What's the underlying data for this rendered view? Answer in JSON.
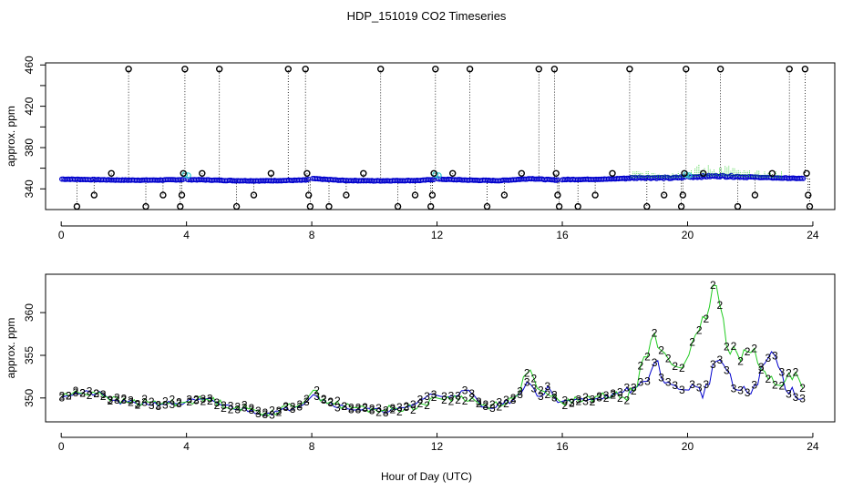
{
  "figure": {
    "title": "HDP_151019  CO2 Timeseries",
    "xlabel": "Hour of Day (UTC)"
  },
  "colors": {
    "black_marker": "#000000",
    "blue_series": "#0000cc",
    "green_series": "#22cc22",
    "cyan_marker": "#33cccc",
    "frame": "#000000"
  },
  "chart_data": [
    {
      "type": "scatter",
      "panel": "top",
      "ylabel": "approx. ppm",
      "xlim": [
        -0.5,
        24.7
      ],
      "ylim": [
        320,
        462
      ],
      "xticks": [
        0,
        4,
        8,
        12,
        16,
        20,
        24
      ],
      "xtick_labels": [
        "0",
        "4",
        "8",
        "12",
        "16",
        "20",
        "24"
      ],
      "yticks": [
        340,
        380,
        420,
        460
      ],
      "ytick_labels": [
        "340",
        "380",
        "420",
        "460"
      ],
      "baseline": [
        {
          "x": 0.0,
          "y": 349.5
        },
        {
          "x": 1.0,
          "y": 349.0
        },
        {
          "x": 2.0,
          "y": 348.5
        },
        {
          "x": 3.0,
          "y": 348.5
        },
        {
          "x": 3.9,
          "y": 349.0
        },
        {
          "x": 4.5,
          "y": 348.8
        },
        {
          "x": 5.5,
          "y": 348.0
        },
        {
          "x": 6.5,
          "y": 347.8
        },
        {
          "x": 7.8,
          "y": 348.5
        },
        {
          "x": 8.0,
          "y": 350.0
        },
        {
          "x": 9.0,
          "y": 348.2
        },
        {
          "x": 10.0,
          "y": 347.8
        },
        {
          "x": 11.5,
          "y": 348.2
        },
        {
          "x": 12.0,
          "y": 349.5
        },
        {
          "x": 13.0,
          "y": 348.5
        },
        {
          "x": 14.0,
          "y": 348.0
        },
        {
          "x": 15.0,
          "y": 350.0
        },
        {
          "x": 15.8,
          "y": 348.5
        },
        {
          "x": 16.0,
          "y": 349.0
        },
        {
          "x": 17.5,
          "y": 349.5
        },
        {
          "x": 18.5,
          "y": 351.0
        },
        {
          "x": 19.5,
          "y": 350.5
        },
        {
          "x": 20.0,
          "y": 351.5
        },
        {
          "x": 21.0,
          "y": 352.5
        },
        {
          "x": 22.0,
          "y": 351.5
        },
        {
          "x": 23.0,
          "y": 350.5
        },
        {
          "x": 23.7,
          "y": 350.0
        }
      ],
      "black_outliers": [
        {
          "x": 0.5,
          "y": 323
        },
        {
          "x": 1.05,
          "y": 334
        },
        {
          "x": 1.6,
          "y": 355
        },
        {
          "x": 2.15,
          "y": 456
        },
        {
          "x": 2.7,
          "y": 323
        },
        {
          "x": 3.25,
          "y": 334
        },
        {
          "x": 3.8,
          "y": 323
        },
        {
          "x": 3.85,
          "y": 334
        },
        {
          "x": 3.9,
          "y": 355
        },
        {
          "x": 3.95,
          "y": 456
        },
        {
          "x": 4.5,
          "y": 355
        },
        {
          "x": 5.05,
          "y": 456
        },
        {
          "x": 5.6,
          "y": 323
        },
        {
          "x": 6.15,
          "y": 334
        },
        {
          "x": 6.7,
          "y": 355
        },
        {
          "x": 7.25,
          "y": 456
        },
        {
          "x": 7.8,
          "y": 456
        },
        {
          "x": 7.85,
          "y": 355
        },
        {
          "x": 7.9,
          "y": 334
        },
        {
          "x": 7.95,
          "y": 323
        },
        {
          "x": 8.55,
          "y": 323
        },
        {
          "x": 9.1,
          "y": 334
        },
        {
          "x": 9.65,
          "y": 355
        },
        {
          "x": 10.2,
          "y": 456
        },
        {
          "x": 10.75,
          "y": 323
        },
        {
          "x": 11.3,
          "y": 334
        },
        {
          "x": 11.8,
          "y": 323
        },
        {
          "x": 11.85,
          "y": 334
        },
        {
          "x": 11.9,
          "y": 355
        },
        {
          "x": 11.95,
          "y": 456
        },
        {
          "x": 12.5,
          "y": 355
        },
        {
          "x": 13.05,
          "y": 456
        },
        {
          "x": 13.6,
          "y": 323
        },
        {
          "x": 14.15,
          "y": 334
        },
        {
          "x": 14.7,
          "y": 355
        },
        {
          "x": 15.25,
          "y": 456
        },
        {
          "x": 15.75,
          "y": 456
        },
        {
          "x": 15.8,
          "y": 355
        },
        {
          "x": 15.85,
          "y": 334
        },
        {
          "x": 15.9,
          "y": 323
        },
        {
          "x": 16.5,
          "y": 323
        },
        {
          "x": 17.05,
          "y": 334
        },
        {
          "x": 17.6,
          "y": 355
        },
        {
          "x": 18.15,
          "y": 456
        },
        {
          "x": 18.7,
          "y": 323
        },
        {
          "x": 19.25,
          "y": 334
        },
        {
          "x": 19.8,
          "y": 323
        },
        {
          "x": 19.85,
          "y": 334
        },
        {
          "x": 19.9,
          "y": 355
        },
        {
          "x": 19.95,
          "y": 456
        },
        {
          "x": 20.5,
          "y": 355
        },
        {
          "x": 21.05,
          "y": 456
        },
        {
          "x": 21.6,
          "y": 323
        },
        {
          "x": 22.15,
          "y": 334
        },
        {
          "x": 22.7,
          "y": 355
        },
        {
          "x": 23.25,
          "y": 456
        },
        {
          "x": 23.75,
          "y": 456
        },
        {
          "x": 23.8,
          "y": 355
        },
        {
          "x": 23.85,
          "y": 334
        },
        {
          "x": 23.9,
          "y": 323
        }
      ],
      "cyan_points": [
        {
          "x": 3.95,
          "y": 354
        },
        {
          "x": 4.05,
          "y": 353
        },
        {
          "x": 11.95,
          "y": 354
        },
        {
          "x": 12.05,
          "y": 353
        },
        {
          "x": 19.95,
          "y": 354
        },
        {
          "x": 20.05,
          "y": 353
        }
      ]
    },
    {
      "type": "line",
      "panel": "bottom",
      "ylabel": "approx. ppm",
      "xlim": [
        -0.5,
        24.7
      ],
      "ylim": [
        347.2,
        364.5
      ],
      "xticks": [
        0,
        4,
        8,
        12,
        16,
        20,
        24
      ],
      "xtick_labels": [
        "0",
        "4",
        "8",
        "12",
        "16",
        "20",
        "24"
      ],
      "yticks": [
        350,
        355,
        360
      ],
      "ytick_labels": [
        "350",
        "355",
        "360"
      ],
      "markers": {
        "series_2": "2",
        "series_3": "3"
      },
      "series_2_profile": [
        {
          "x": 0.0,
          "y": 350.3
        },
        {
          "x": 0.7,
          "y": 350.6
        },
        {
          "x": 1.2,
          "y": 350.7
        },
        {
          "x": 1.8,
          "y": 349.6
        },
        {
          "x": 3.0,
          "y": 349.4
        },
        {
          "x": 3.9,
          "y": 349.5
        },
        {
          "x": 4.0,
          "y": 349.7
        },
        {
          "x": 4.8,
          "y": 349.8
        },
        {
          "x": 5.2,
          "y": 349.2
        },
        {
          "x": 6.5,
          "y": 348.3
        },
        {
          "x": 7.0,
          "y": 348.5
        },
        {
          "x": 7.8,
          "y": 349.8
        },
        {
          "x": 8.0,
          "y": 351.0
        },
        {
          "x": 8.3,
          "y": 350.0
        },
        {
          "x": 9.0,
          "y": 349.0
        },
        {
          "x": 10.0,
          "y": 348.6
        },
        {
          "x": 11.0,
          "y": 348.8
        },
        {
          "x": 11.8,
          "y": 349.5
        },
        {
          "x": 12.0,
          "y": 350.0
        },
        {
          "x": 13.0,
          "y": 350.0
        },
        {
          "x": 13.5,
          "y": 349.0
        },
        {
          "x": 14.5,
          "y": 349.8
        },
        {
          "x": 14.9,
          "y": 353.5
        },
        {
          "x": 15.3,
          "y": 350.5
        },
        {
          "x": 15.8,
          "y": 350.0
        },
        {
          "x": 16.0,
          "y": 349.5
        },
        {
          "x": 17.0,
          "y": 350.0
        },
        {
          "x": 18.0,
          "y": 350.5
        },
        {
          "x": 18.5,
          "y": 353.0
        },
        {
          "x": 18.9,
          "y": 357.0
        },
        {
          "x": 19.5,
          "y": 354.0
        },
        {
          "x": 20.0,
          "y": 354.5
        },
        {
          "x": 20.4,
          "y": 357.5
        },
        {
          "x": 20.9,
          "y": 363.5
        },
        {
          "x": 21.2,
          "y": 357.0
        },
        {
          "x": 21.6,
          "y": 355.0
        },
        {
          "x": 22.0,
          "y": 356.5
        },
        {
          "x": 22.5,
          "y": 352.0
        },
        {
          "x": 23.0,
          "y": 352.0
        },
        {
          "x": 23.5,
          "y": 352.5
        },
        {
          "x": 23.7,
          "y": 350.5
        }
      ],
      "series_3_profile": [
        {
          "x": 0.0,
          "y": 350.3
        },
        {
          "x": 0.7,
          "y": 350.6
        },
        {
          "x": 1.2,
          "y": 350.5
        },
        {
          "x": 1.8,
          "y": 349.5
        },
        {
          "x": 3.0,
          "y": 349.3
        },
        {
          "x": 3.9,
          "y": 349.4
        },
        {
          "x": 4.0,
          "y": 349.6
        },
        {
          "x": 4.8,
          "y": 349.7
        },
        {
          "x": 5.2,
          "y": 349.1
        },
        {
          "x": 6.5,
          "y": 348.2
        },
        {
          "x": 7.0,
          "y": 348.4
        },
        {
          "x": 7.8,
          "y": 349.5
        },
        {
          "x": 8.0,
          "y": 350.8
        },
        {
          "x": 8.3,
          "y": 349.8
        },
        {
          "x": 9.0,
          "y": 348.9
        },
        {
          "x": 10.0,
          "y": 348.5
        },
        {
          "x": 11.0,
          "y": 348.7
        },
        {
          "x": 11.8,
          "y": 350.5
        },
        {
          "x": 12.0,
          "y": 350.0
        },
        {
          "x": 13.0,
          "y": 350.8
        },
        {
          "x": 13.5,
          "y": 348.8
        },
        {
          "x": 14.5,
          "y": 349.8
        },
        {
          "x": 14.9,
          "y": 352.0
        },
        {
          "x": 15.3,
          "y": 350.0
        },
        {
          "x": 15.6,
          "y": 351.5
        },
        {
          "x": 15.8,
          "y": 349.5
        },
        {
          "x": 16.0,
          "y": 349.4
        },
        {
          "x": 17.0,
          "y": 350.0
        },
        {
          "x": 18.0,
          "y": 350.5
        },
        {
          "x": 18.5,
          "y": 351.5
        },
        {
          "x": 19.0,
          "y": 354.0
        },
        {
          "x": 19.5,
          "y": 351.0
        },
        {
          "x": 20.0,
          "y": 351.5
        },
        {
          "x": 20.5,
          "y": 350.5
        },
        {
          "x": 21.0,
          "y": 355.0
        },
        {
          "x": 21.5,
          "y": 351.0
        },
        {
          "x": 22.0,
          "y": 350.5
        },
        {
          "x": 22.7,
          "y": 355.5
        },
        {
          "x": 23.2,
          "y": 351.0
        },
        {
          "x": 23.7,
          "y": 350.2
        }
      ]
    }
  ]
}
